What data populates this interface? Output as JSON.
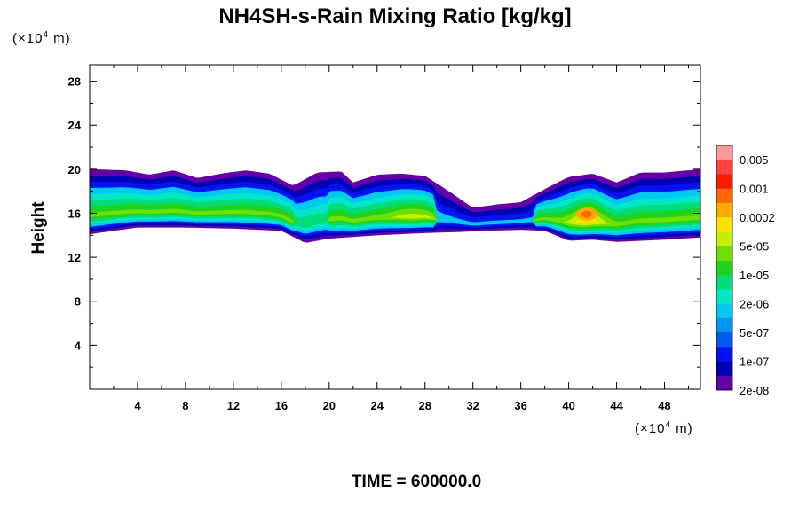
{
  "chart_data": {
    "type": "heatmap",
    "title": "NH4SH-s-Rain Mixing Ratio [kg/kg]",
    "ylabel": "Height",
    "y_unit": {
      "prefix": "(×10",
      "exp": "4",
      "suffix": " m)"
    },
    "x_unit": {
      "prefix": "(×10",
      "exp": "4",
      "suffix": " m)"
    },
    "xlim": [
      0,
      51
    ],
    "ylim": [
      0,
      29.5
    ],
    "x_ticks": [
      4,
      8,
      12,
      16,
      20,
      24,
      28,
      32,
      36,
      40,
      44,
      48
    ],
    "y_ticks": [
      4,
      8,
      12,
      16,
      20,
      24,
      28
    ],
    "colorbar": {
      "labels": [
        "0.005",
        "0.001",
        "0.0002",
        "5e-05",
        "1e-05",
        "2e-06",
        "5e-07",
        "1e-07",
        "2e-08"
      ],
      "colors": [
        "#ff9999",
        "#ff4040",
        "#ff1a00",
        "#ff6a00",
        "#ffaa00",
        "#ffe100",
        "#c6f000",
        "#6ee000",
        "#1ed21e",
        "#00dc78",
        "#00e6c8",
        "#00c8f0",
        "#0096f0",
        "#005af0",
        "#0014f0",
        "#0000b4",
        "#6400a8"
      ]
    },
    "field": {
      "cloud_top": [
        [
          0,
          20.0
        ],
        [
          3,
          19.9
        ],
        [
          5,
          19.5
        ],
        [
          7,
          19.9
        ],
        [
          9,
          19.2
        ],
        [
          11,
          19.6
        ],
        [
          13,
          19.9
        ],
        [
          15,
          19.6
        ],
        [
          17,
          18.5
        ],
        [
          19,
          19.7
        ],
        [
          21,
          19.8
        ],
        [
          22,
          18.8
        ],
        [
          24,
          19.5
        ],
        [
          26,
          19.6
        ],
        [
          28,
          19.4
        ],
        [
          30,
          18.0
        ],
        [
          32,
          16.5
        ],
        [
          34,
          16.8
        ],
        [
          36,
          17.0
        ],
        [
          38,
          18.2
        ],
        [
          40,
          19.3
        ],
        [
          42,
          19.6
        ],
        [
          44,
          18.8
        ],
        [
          46,
          19.7
        ],
        [
          48,
          19.7
        ],
        [
          51,
          20.0
        ]
      ],
      "cloud_base": [
        [
          0,
          14.1
        ],
        [
          4,
          14.7
        ],
        [
          8,
          14.7
        ],
        [
          12,
          14.6
        ],
        [
          16,
          14.4
        ],
        [
          18,
          13.3
        ],
        [
          20,
          13.7
        ],
        [
          24,
          14.0
        ],
        [
          28,
          14.2
        ],
        [
          31,
          14.3
        ],
        [
          33,
          14.4
        ],
        [
          36,
          14.5
        ],
        [
          38,
          14.4
        ],
        [
          40,
          13.5
        ],
        [
          42,
          13.6
        ],
        [
          44,
          13.4
        ],
        [
          46,
          13.5
        ],
        [
          48,
          13.6
        ],
        [
          51,
          13.8
        ]
      ],
      "max_core_x": 41.5,
      "max_core_height": 15.9
    },
    "annotation": {
      "prefix": "TIME = ",
      "value": "600000.0"
    }
  }
}
